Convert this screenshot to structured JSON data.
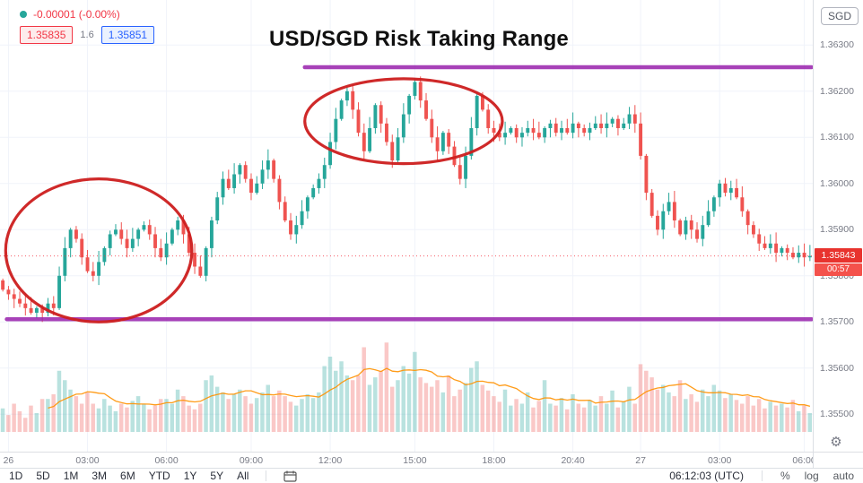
{
  "legend": {
    "change": "-0.00001 (-0.00%)",
    "bid": "1.35835",
    "spread": "1.6",
    "ask": "1.35851"
  },
  "symbol_button": "SGD",
  "annotations": {
    "title": "USD/SGD Risk Taking Range",
    "upper_line": {
      "price": 1.36252,
      "x1_idx": 54,
      "x2_idx": 143.8
    },
    "lower_line": {
      "price": 1.35706,
      "x1_idx": 1.2,
      "x2_idx": 143.8
    },
    "ellipses": [
      {
        "cx_idx": 17.5,
        "cy_price": 1.35855,
        "rx_idx": 16.5,
        "ry_price": 0.00155
      },
      {
        "cx_idx": 71.5,
        "cy_price": 1.36135,
        "rx_idx": 17.5,
        "ry_price": 0.00092
      }
    ]
  },
  "price_axis": {
    "ticks": [
      "1.36300",
      "1.36200",
      "1.36100",
      "1.36000",
      "1.35900",
      "1.35800",
      "1.35700",
      "1.35600",
      "1.35500"
    ],
    "last_price_label": "1.35843",
    "countdown": "00:57"
  },
  "time_axis": {
    "labels": [
      {
        "text": "26",
        "idx": 1
      },
      {
        "text": "03:00",
        "idx": 15
      },
      {
        "text": "06:00",
        "idx": 29
      },
      {
        "text": "09:00",
        "idx": 44
      },
      {
        "text": "12:00",
        "idx": 58
      },
      {
        "text": "15:00",
        "idx": 73
      },
      {
        "text": "18:00",
        "idx": 87
      },
      {
        "text": "20:40",
        "idx": 101
      },
      {
        "text": "27",
        "idx": 113
      },
      {
        "text": "03:00",
        "idx": 127
      },
      {
        "text": "06:00",
        "idx": 142
      }
    ]
  },
  "toolbar": {
    "ranges": [
      "1D",
      "5D",
      "1M",
      "3M",
      "6M",
      "YTD",
      "1Y",
      "5Y",
      "All"
    ],
    "clock": "06:12:03 (UTC)",
    "percent_label": "%",
    "log_label": "log",
    "auto_label": "auto"
  },
  "colors": {
    "up": "#26a69a",
    "down": "#ef5350",
    "accent_red": "#f23645",
    "purple": "#9b27af",
    "volume_ma_orange": "#ff9100",
    "grid": "#f0f3fa",
    "bid_red": "#f23645",
    "ask_blue": "#2962ff"
  },
  "chart_data": {
    "type": "candlestick",
    "symbol": "USD/SGD",
    "title": "USD/SGD Risk Taking Range",
    "price_range": {
      "min": 1.3548,
      "max": 1.3632
    },
    "last_price": 1.35843,
    "levels": {
      "resistance": 1.36252,
      "support": 1.35706
    },
    "closes": [
      1.3577,
      1.3576,
      1.3575,
      1.3574,
      1.3573,
      1.3572,
      1.3573,
      1.3572,
      1.3574,
      1.3573,
      1.358,
      1.3586,
      1.359,
      1.3588,
      1.3584,
      1.3581,
      1.358,
      1.3583,
      1.3586,
      1.3589,
      1.359,
      1.3588,
      1.3586,
      1.3588,
      1.359,
      1.3591,
      1.3589,
      1.3586,
      1.3584,
      1.3587,
      1.359,
      1.3592,
      1.3589,
      1.3585,
      1.3582,
      1.358,
      1.3586,
      1.3592,
      1.3597,
      1.3601,
      1.3599,
      1.3602,
      1.3604,
      1.3601,
      1.3598,
      1.36,
      1.3603,
      1.3605,
      1.3601,
      1.3596,
      1.3592,
      1.3589,
      1.3591,
      1.3594,
      1.3597,
      1.3599,
      1.3601,
      1.3604,
      1.3609,
      1.3614,
      1.3618,
      1.362,
      1.3616,
      1.3611,
      1.3607,
      1.3612,
      1.3617,
      1.3613,
      1.3609,
      1.3605,
      1.361,
      1.3615,
      1.3619,
      1.3622,
      1.3618,
      1.3614,
      1.361,
      1.3607,
      1.3611,
      1.3608,
      1.3604,
      1.3601,
      1.3606,
      1.3612,
      1.3619,
      1.3616,
      1.3612,
      1.3611,
      1.361,
      1.3611,
      1.3612,
      1.361,
      1.3611,
      1.3612,
      1.3611,
      1.361,
      1.3612,
      1.3613,
      1.3611,
      1.3612,
      1.3611,
      1.3613,
      1.3612,
      1.3611,
      1.3612,
      1.3613,
      1.3612,
      1.3613,
      1.3614,
      1.3612,
      1.3613,
      1.3615,
      1.3613,
      1.3606,
      1.3598,
      1.3593,
      1.359,
      1.3594,
      1.3596,
      1.3592,
      1.3589,
      1.3592,
      1.359,
      1.3588,
      1.3591,
      1.3594,
      1.3597,
      1.36,
      1.3598,
      1.3599,
      1.3597,
      1.3594,
      1.3591,
      1.3589,
      1.3587,
      1.3586,
      1.3587,
      1.3585,
      1.3586,
      1.3585,
      1.3584,
      1.3585,
      1.3584,
      1.35843
    ],
    "volumes": [
      25,
      18,
      30,
      22,
      15,
      28,
      20,
      35,
      35,
      40,
      65,
      55,
      45,
      38,
      30,
      42,
      30,
      25,
      35,
      28,
      22,
      30,
      26,
      33,
      38,
      30,
      24,
      28,
      35,
      35,
      30,
      45,
      38,
      28,
      24,
      30,
      55,
      60,
      48,
      42,
      35,
      40,
      45,
      38,
      30,
      36,
      42,
      50,
      38,
      44,
      38,
      32,
      28,
      35,
      40,
      36,
      42,
      70,
      80,
      65,
      75,
      60,
      55,
      60,
      90,
      50,
      58,
      65,
      95,
      48,
      55,
      70,
      62,
      85,
      58,
      52,
      48,
      55,
      42,
      60,
      38,
      45,
      52,
      68,
      75,
      50,
      44,
      38,
      32,
      45,
      28,
      35,
      30,
      42,
      26,
      33,
      55,
      30,
      28,
      36,
      24,
      40,
      30,
      26,
      34,
      28,
      38,
      30,
      44,
      26,
      32,
      48,
      30,
      72,
      65,
      58,
      45,
      50,
      42,
      38,
      55,
      35,
      40,
      32,
      45,
      38,
      50,
      44,
      36,
      40,
      34,
      30,
      38,
      28,
      35,
      25,
      32,
      28,
      30,
      26,
      34,
      22,
      28,
      20
    ]
  }
}
